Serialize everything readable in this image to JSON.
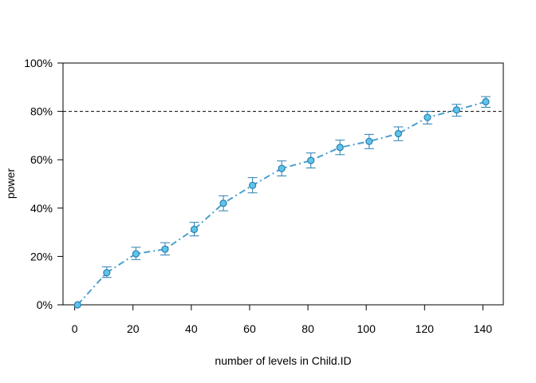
{
  "chart_data": {
    "type": "line",
    "xlabel": "number of levels in Child.ID",
    "ylabel": "power",
    "x": [
      1,
      11,
      21,
      31,
      41,
      51,
      61,
      71,
      81,
      91,
      101,
      111,
      121,
      131,
      141
    ],
    "series": [
      {
        "values": [
          0,
          13.3,
          21.1,
          23.0,
          31.2,
          42.0,
          49.4,
          56.4,
          59.7,
          65.1,
          67.6,
          70.8,
          77.5,
          80.6,
          84.0
        ],
        "lower": [
          0,
          11.3,
          18.7,
          20.6,
          28.5,
          38.9,
          46.3,
          53.3,
          56.6,
          62.1,
          64.6,
          67.9,
          74.8,
          78.0,
          81.7
        ],
        "upper": [
          0,
          15.7,
          23.8,
          25.7,
          34.1,
          45.1,
          52.6,
          59.5,
          62.8,
          68.1,
          70.5,
          73.6,
          80.0,
          82.9,
          86.1
        ]
      }
    ],
    "reference_line": 80,
    "xlim": [
      -4,
      147
    ],
    "ylim": [
      0,
      100
    ],
    "x_ticks": [
      0,
      20,
      40,
      60,
      80,
      100,
      120,
      140
    ],
    "y_ticks": [
      0,
      20,
      40,
      60,
      80,
      100
    ],
    "y_tick_labels": [
      "0%",
      "20%",
      "40%",
      "60%",
      "80%",
      "100%"
    ],
    "colors": {
      "line": "#4a9fcf",
      "point_fill": "#5ec4ea",
      "point_stroke": "#2a7fb0",
      "reference": "#000000"
    }
  }
}
